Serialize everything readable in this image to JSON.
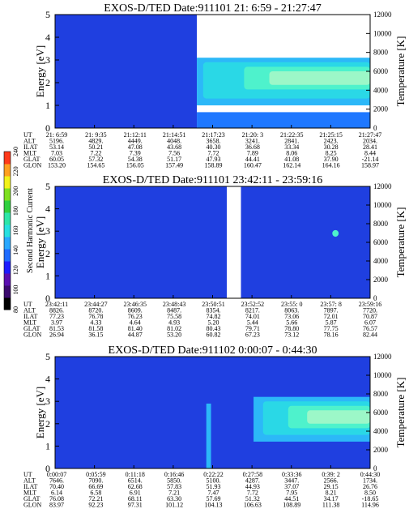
{
  "colorbar": {
    "label": "Second Harmonic Current",
    "ticks": [
      {
        "value": 80,
        "label": "80"
      },
      {
        "value": 100,
        "label": "100"
      },
      {
        "value": 120,
        "label": "120"
      },
      {
        "value": 140,
        "label": "140"
      },
      {
        "value": 160,
        "label": "160"
      },
      {
        "value": 180,
        "label": "180"
      },
      {
        "value": 200,
        "label": "200"
      },
      {
        "value": 220,
        "label": "220"
      },
      {
        "value": 240,
        "label": "240"
      }
    ],
    "range": [
      80,
      240
    ],
    "colors": [
      "#000000",
      "#3b0a6e",
      "#5a0fb0",
      "#1c1cff",
      "#1f6cff",
      "#2aa8ff",
      "#28e0e0",
      "#2ee6a8",
      "#30d040",
      "#7fe020",
      "#f2f21a",
      "#ffa020",
      "#ff3a1a"
    ]
  },
  "panel_labels": {
    "energy": "Energy [eV]",
    "temperature": "Temperature [K]",
    "energy_ticks": [
      "0",
      "1",
      "2",
      "3",
      "4",
      "5"
    ],
    "temperature_ticks": [
      "0",
      "2000",
      "4000",
      "6000",
      "8000",
      "10000",
      "12000"
    ]
  },
  "chart_data": [
    {
      "type": "heatmap",
      "title": "EXOS-D/TED   Date:911101  21: 6:59 - 21:27:47",
      "ylabel": "Energy [eV]",
      "ylabel_right": "Temperature [K]",
      "ylim": [
        0,
        5
      ],
      "ylim_right": [
        0,
        12000
      ],
      "gaps": [],
      "features": [
        {
          "x0": 0.0,
          "x1": 0.45,
          "y0": 0.0,
          "y1": 5.0,
          "level": 1
        },
        {
          "x0": 0.45,
          "x1": 1.0,
          "y0": 1.0,
          "y1": 3.1,
          "level": 3
        },
        {
          "x0": 0.47,
          "x1": 1.0,
          "y0": 1.3,
          "y1": 2.9,
          "level": 4
        },
        {
          "x0": 0.6,
          "x1": 1.0,
          "y0": 1.7,
          "y1": 2.7,
          "level": 5
        },
        {
          "x0": 0.68,
          "x1": 1.0,
          "y0": 1.9,
          "y1": 2.5,
          "level": 6
        },
        {
          "x0": 0.45,
          "x1": 1.0,
          "y0": 0.0,
          "y1": 0.7,
          "level": 2
        }
      ],
      "ephemeris": {
        "rows": [
          {
            "name": "UT",
            "values": [
              "21: 6:59",
              "21: 9:35",
              "21:12:11",
              "21:14:51",
              "21:17:23",
              "21:20: 3",
              "21:22:35",
              "21:25:15",
              "21:27:47"
            ]
          },
          {
            "name": "ALT",
            "values": [
              "5196.",
              "4829.",
              "4449.",
              "4048.",
              "3658.",
              "3241.",
              "2841.",
              "2423.",
              "2034."
            ]
          },
          {
            "name": "ILAT",
            "values": [
              "53.14",
              "50.21",
              "47.08",
              "43.68",
              "40.30",
              "36.68",
              "33.34",
              "30.28",
              "28.41"
            ]
          },
          {
            "name": "MLT",
            "values": [
              "7.03",
              "7.22",
              "7.39",
              "7.56",
              "7.72",
              "7.89",
              "8.06",
              "8.25",
              "8.44"
            ]
          },
          {
            "name": "GLAT",
            "values": [
              "60.05",
              "57.32",
              "54.38",
              "51.17",
              "47.93",
              "44.41",
              "41.08",
              "37.90",
              "-21.14"
            ]
          },
          {
            "name": "GLON",
            "values": [
              "153.20",
              "154.65",
              "156.05",
              "157.49",
              "158.89",
              "160.47",
              "162.14",
              "164.16",
              "158.97"
            ]
          }
        ]
      }
    },
    {
      "type": "heatmap",
      "title": "EXOS-D/TED   Date:911101  23:42:11 - 23:59:16",
      "ylabel": "Energy [eV]",
      "ylabel_right": "Temperature [K]",
      "ylim": [
        0,
        5
      ],
      "ylim_right": [
        0,
        12000
      ],
      "gaps": [
        {
          "x0": 0.545,
          "x1": 0.59
        }
      ],
      "features": [
        {
          "x0": 0.0,
          "x1": 1.0,
          "y0": 0.0,
          "y1": 5.0,
          "level": 1
        },
        {
          "x0": 0.88,
          "x1": 0.9,
          "y0": 2.75,
          "y1": 3.05,
          "level": 5
        }
      ],
      "ephemeris": {
        "rows": [
          {
            "name": "UT",
            "values": [
              "23:42:11",
              "23:44:27",
              "23:46:35",
              "23:48:43",
              "23:50:51",
              "23:52:52",
              "23:55: 0",
              "23:57: 8",
              "23:59:16"
            ]
          },
          {
            "name": "ALT",
            "values": [
              "8826.",
              "8720.",
              "8609.",
              "8487.",
              "8354.",
              "8217.",
              "8063.",
              "7897.",
              "7720."
            ]
          },
          {
            "name": "ILAT",
            "values": [
              "77.23",
              "76.78",
              "76.23",
              "75.58",
              "74.82",
              "74.01",
              "73.06",
              "72.01",
              "70.87"
            ]
          },
          {
            "name": "MLT",
            "values": [
              "3.97",
              "4.33",
              "4.64",
              "4.93",
              "5.20",
              "5.44",
              "5.66",
              "5.87",
              "6.07"
            ]
          },
          {
            "name": "GLAT",
            "values": [
              "81.53",
              "81.58",
              "81.40",
              "81.02",
              "80.43",
              "79.71",
              "78.80",
              "77.75",
              "76.57"
            ]
          },
          {
            "name": "GLON",
            "values": [
              "26.94",
              "36.15",
              "44.87",
              "53.20",
              "60.82",
              "67.23",
              "73.12",
              "78.16",
              "82.44"
            ]
          }
        ]
      }
    },
    {
      "type": "heatmap",
      "title": "EXOS-D/TED   Date:911102   0:00:07 - 0:44:30",
      "ylabel": "Energy [eV]",
      "ylabel_right": "Temperature [K]",
      "ylim": [
        0,
        5
      ],
      "ylim_right": [
        0,
        12000
      ],
      "gaps": [],
      "features": [
        {
          "x0": 0.0,
          "x1": 1.0,
          "y0": 0.0,
          "y1": 5.0,
          "level": 1
        },
        {
          "x0": 0.48,
          "x1": 0.495,
          "y0": 0.0,
          "y1": 2.9,
          "level": 3
        },
        {
          "x0": 0.63,
          "x1": 1.0,
          "y0": 1.2,
          "y1": 3.2,
          "level": 3
        },
        {
          "x0": 0.66,
          "x1": 1.0,
          "y0": 1.5,
          "y1": 3.0,
          "level": 4
        },
        {
          "x0": 0.74,
          "x1": 1.0,
          "y0": 1.8,
          "y1": 2.8,
          "level": 5
        },
        {
          "x0": 0.8,
          "x1": 1.0,
          "y0": 2.0,
          "y1": 2.6,
          "level": 6
        }
      ],
      "ephemeris": {
        "rows": [
          {
            "name": "UT",
            "values": [
              "0:00:07",
              "0:05:59",
              "0:11:18",
              "0:16:46",
              "0:22:22",
              "0:27:58",
              "0:33:36",
              "0:39: 2",
              "0:44:30"
            ]
          },
          {
            "name": "ALT",
            "values": [
              "7646.",
              "7090.",
              "6514.",
              "5850.",
              "5100.",
              "4287.",
              "3447.",
              "2566.",
              "1734."
            ]
          },
          {
            "name": "ILAT",
            "values": [
              "70.40",
              "66.69",
              "62.68",
              "57.83",
              "51.93",
              "44.93",
              "37.07",
              "29.15",
              "26.76"
            ]
          },
          {
            "name": "MLT",
            "values": [
              "6.14",
              "6.58",
              "6.91",
              "7.21",
              "7.47",
              "7.72",
              "7.95",
              "8.21",
              "8.50"
            ]
          },
          {
            "name": "GLAT",
            "values": [
              "76.08",
              "72.21",
              "68.11",
              "63.30",
              "57.69",
              "51.32",
              "44.51",
              "34.17",
              "-18.65"
            ]
          },
          {
            "name": "GLON",
            "values": [
              "83.97",
              "92.23",
              "97.31",
              "101.12",
              "104.13",
              "106.63",
              "108.89",
              "111.38",
              "114.96"
            ]
          }
        ]
      }
    }
  ]
}
